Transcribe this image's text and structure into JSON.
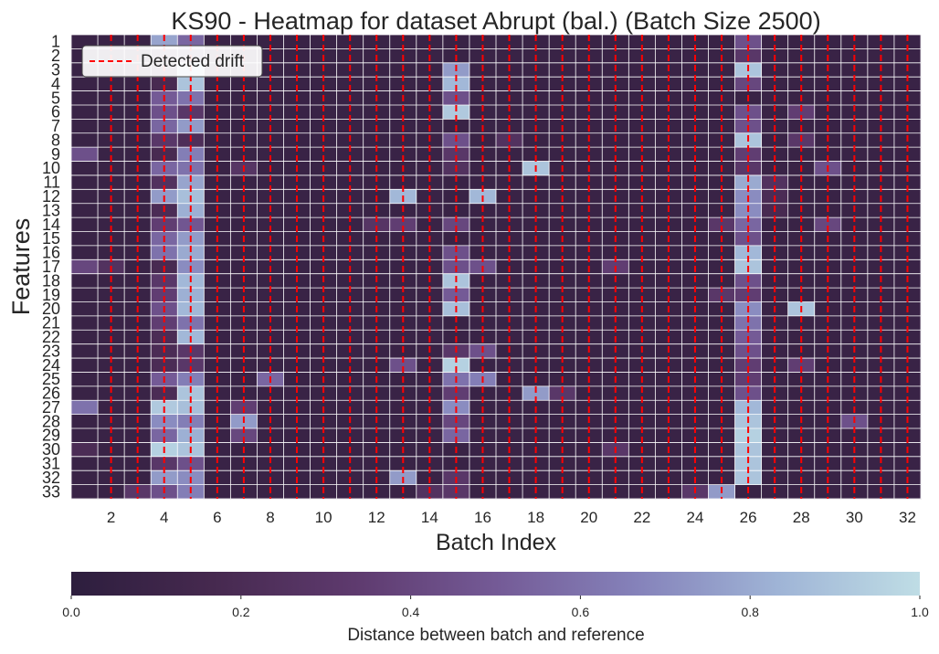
{
  "chart_data": {
    "type": "heatmap",
    "title": "KS90 - Heatmap for dataset Abrupt (bal.) (Batch Size 2500)",
    "xlabel": "Batch Index",
    "ylabel": "Features",
    "x_categories": [
      1,
      2,
      3,
      4,
      5,
      6,
      7,
      8,
      9,
      10,
      11,
      12,
      13,
      14,
      15,
      16,
      17,
      18,
      19,
      20,
      21,
      22,
      23,
      24,
      25,
      26,
      27,
      28,
      29,
      30,
      31,
      32
    ],
    "x_tick_labels": [
      "2",
      "4",
      "6",
      "8",
      "10",
      "12",
      "14",
      "16",
      "18",
      "20",
      "22",
      "24",
      "26",
      "28",
      "30",
      "32"
    ],
    "y_categories": [
      "1",
      "2",
      "3",
      "4",
      "5",
      "6",
      "7",
      "8",
      "9",
      "10",
      "11",
      "12",
      "13",
      "14",
      "15",
      "16",
      "17",
      "18",
      "19",
      "20",
      "21",
      "22",
      "23",
      "24",
      "25",
      "26",
      "27",
      "28",
      "29",
      "30",
      "31",
      "32",
      "33"
    ],
    "colorbar": {
      "label": "Distance between batch and reference",
      "range": [
        0,
        1
      ],
      "ticks": [
        "0.0",
        "0.2",
        "0.4",
        "0.6",
        "0.8",
        "1.0"
      ],
      "stops": [
        "#2d1e3e",
        "#46294f",
        "#5e3a6e",
        "#745a96",
        "#8582ba",
        "#9fb4d6",
        "#bfdde5"
      ]
    },
    "legend": {
      "label": "Detected drift",
      "position": "top-left",
      "color": "#ff0000"
    },
    "drift_batches": [
      2,
      3,
      4,
      5,
      6,
      7,
      8,
      9,
      10,
      11,
      12,
      13,
      14,
      15,
      16,
      17,
      18,
      19,
      20,
      21,
      22,
      23,
      24,
      25,
      26,
      27,
      28,
      29,
      30,
      31,
      32
    ],
    "background_value": 0.08,
    "values_sparse": [
      [
        1,
        4,
        0.78
      ],
      [
        1,
        5,
        0.55
      ],
      [
        1,
        26,
        0.45
      ],
      [
        2,
        4,
        0.3
      ],
      [
        2,
        5,
        0.35
      ],
      [
        2,
        26,
        0.3
      ],
      [
        3,
        4,
        0.15
      ],
      [
        3,
        5,
        0.88
      ],
      [
        3,
        15,
        0.75
      ],
      [
        3,
        26,
        0.9
      ],
      [
        4,
        4,
        0.18
      ],
      [
        4,
        5,
        0.9
      ],
      [
        4,
        15,
        0.85
      ],
      [
        4,
        26,
        0.4
      ],
      [
        5,
        4,
        0.5
      ],
      [
        5,
        5,
        0.6
      ],
      [
        5,
        15,
        0.45
      ],
      [
        6,
        4,
        0.45
      ],
      [
        6,
        5,
        0.3
      ],
      [
        6,
        15,
        0.92
      ],
      [
        6,
        26,
        0.45
      ],
      [
        6,
        28,
        0.35
      ],
      [
        7,
        4,
        0.55
      ],
      [
        7,
        5,
        0.75
      ],
      [
        7,
        26,
        0.45
      ],
      [
        8,
        4,
        0.3
      ],
      [
        8,
        5,
        0.22
      ],
      [
        8,
        15,
        0.45
      ],
      [
        8,
        17,
        0.25
      ],
      [
        8,
        26,
        0.9
      ],
      [
        8,
        28,
        0.3
      ],
      [
        9,
        1,
        0.45
      ],
      [
        9,
        4,
        0.18
      ],
      [
        9,
        5,
        0.65
      ],
      [
        9,
        15,
        0.3
      ],
      [
        9,
        26,
        0.35
      ],
      [
        10,
        4,
        0.55
      ],
      [
        10,
        5,
        0.6
      ],
      [
        10,
        7,
        0.28
      ],
      [
        10,
        15,
        0.25
      ],
      [
        10,
        18,
        0.9
      ],
      [
        10,
        26,
        0.3
      ],
      [
        10,
        29,
        0.45
      ],
      [
        11,
        4,
        0.25
      ],
      [
        11,
        5,
        0.78
      ],
      [
        11,
        26,
        0.8
      ],
      [
        11,
        27,
        0.25
      ],
      [
        12,
        4,
        0.75
      ],
      [
        12,
        5,
        0.88
      ],
      [
        12,
        13,
        0.85
      ],
      [
        12,
        16,
        0.85
      ],
      [
        12,
        26,
        0.7
      ],
      [
        12,
        27,
        0.2
      ],
      [
        13,
        4,
        0.2
      ],
      [
        13,
        5,
        0.82
      ],
      [
        13,
        26,
        0.7
      ],
      [
        13,
        27,
        0.18
      ],
      [
        14,
        4,
        0.35
      ],
      [
        14,
        5,
        0.48
      ],
      [
        14,
        12,
        0.28
      ],
      [
        14,
        13,
        0.35
      ],
      [
        14,
        15,
        0.4
      ],
      [
        14,
        25,
        0.3
      ],
      [
        14,
        26,
        0.55
      ],
      [
        14,
        29,
        0.4
      ],
      [
        15,
        4,
        0.55
      ],
      [
        15,
        5,
        0.75
      ],
      [
        15,
        26,
        0.45
      ],
      [
        16,
        4,
        0.6
      ],
      [
        16,
        5,
        0.8
      ],
      [
        16,
        15,
        0.45
      ],
      [
        16,
        26,
        0.85
      ],
      [
        17,
        1,
        0.4
      ],
      [
        17,
        2,
        0.25
      ],
      [
        17,
        4,
        0.18
      ],
      [
        17,
        5,
        0.7
      ],
      [
        17,
        15,
        0.45
      ],
      [
        17,
        16,
        0.45
      ],
      [
        17,
        21,
        0.35
      ],
      [
        17,
        26,
        0.9
      ],
      [
        18,
        4,
        0.3
      ],
      [
        18,
        5,
        0.85
      ],
      [
        18,
        15,
        0.9
      ],
      [
        18,
        26,
        0.45
      ],
      [
        19,
        4,
        0.35
      ],
      [
        19,
        5,
        0.82
      ],
      [
        19,
        15,
        0.5
      ],
      [
        19,
        25,
        0.3
      ],
      [
        19,
        26,
        0.35
      ],
      [
        20,
        4,
        0.45
      ],
      [
        20,
        5,
        0.85
      ],
      [
        20,
        15,
        0.88
      ],
      [
        20,
        26,
        0.7
      ],
      [
        20,
        28,
        0.9
      ],
      [
        21,
        4,
        0.35
      ],
      [
        21,
        5,
        0.6
      ],
      [
        21,
        26,
        0.6
      ],
      [
        22,
        4,
        0.2
      ],
      [
        22,
        5,
        0.85
      ],
      [
        22,
        26,
        0.5
      ],
      [
        23,
        4,
        0.2
      ],
      [
        23,
        5,
        0.3
      ],
      [
        23,
        15,
        0.3
      ],
      [
        23,
        16,
        0.45
      ],
      [
        23,
        26,
        0.45
      ],
      [
        24,
        4,
        0.2
      ],
      [
        24,
        5,
        0.3
      ],
      [
        24,
        13,
        0.45
      ],
      [
        24,
        15,
        0.95
      ],
      [
        24,
        26,
        0.35
      ],
      [
        24,
        28,
        0.35
      ],
      [
        25,
        4,
        0.5
      ],
      [
        25,
        5,
        0.65
      ],
      [
        25,
        8,
        0.55
      ],
      [
        25,
        15,
        0.6
      ],
      [
        25,
        16,
        0.65
      ],
      [
        25,
        26,
        0.35
      ],
      [
        26,
        4,
        0.2
      ],
      [
        26,
        5,
        0.9
      ],
      [
        26,
        15,
        0.35
      ],
      [
        26,
        18,
        0.75
      ],
      [
        26,
        19,
        0.3
      ],
      [
        26,
        26,
        0.45
      ],
      [
        27,
        1,
        0.6
      ],
      [
        27,
        4,
        0.92
      ],
      [
        27,
        5,
        0.88
      ],
      [
        27,
        7,
        0.35
      ],
      [
        27,
        15,
        0.7
      ],
      [
        27,
        26,
        0.85
      ],
      [
        28,
        4,
        0.7
      ],
      [
        28,
        5,
        0.65
      ],
      [
        28,
        7,
        0.75
      ],
      [
        28,
        15,
        0.4
      ],
      [
        28,
        26,
        0.9
      ],
      [
        28,
        30,
        0.45
      ],
      [
        29,
        4,
        0.55
      ],
      [
        29,
        5,
        0.82
      ],
      [
        29,
        7,
        0.4
      ],
      [
        29,
        15,
        0.55
      ],
      [
        29,
        26,
        0.95
      ],
      [
        30,
        1,
        0.2
      ],
      [
        30,
        4,
        0.95
      ],
      [
        30,
        5,
        0.9
      ],
      [
        30,
        21,
        0.3
      ],
      [
        30,
        26,
        0.9
      ],
      [
        31,
        4,
        0.3
      ],
      [
        31,
        5,
        0.45
      ],
      [
        31,
        26,
        0.9
      ],
      [
        32,
        4,
        0.75
      ],
      [
        32,
        5,
        0.7
      ],
      [
        32,
        13,
        0.75
      ],
      [
        32,
        15,
        0.3
      ],
      [
        32,
        26,
        0.9
      ],
      [
        33,
        3,
        0.3
      ],
      [
        33,
        4,
        0.45
      ],
      [
        33,
        5,
        0.65
      ],
      [
        33,
        14,
        0.25
      ],
      [
        33,
        15,
        0.3
      ],
      [
        33,
        24,
        0.3
      ],
      [
        33,
        25,
        0.75
      ]
    ]
  }
}
